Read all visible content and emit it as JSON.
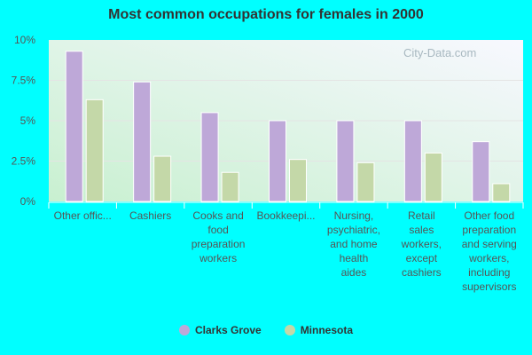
{
  "chart_data": {
    "type": "bar",
    "title": "Most common occupations for females in 2000",
    "categories": [
      "Other offic...",
      "Cashiers",
      "Cooks and food preparation workers",
      "Bookkeepi...",
      "Nursing, psychiatric, and home health aides",
      "Retail sales workers, except cashiers",
      "Other food preparation and serving workers, including supervisors"
    ],
    "category_lines": [
      [
        "Other offic..."
      ],
      [
        "Cashiers"
      ],
      [
        "Cooks and",
        "food",
        "preparation",
        "workers"
      ],
      [
        "Bookkeepi..."
      ],
      [
        "Nursing,",
        "psychiatric,",
        "and home",
        "health",
        "aides"
      ],
      [
        "Retail",
        "sales",
        "workers,",
        "except",
        "cashiers"
      ],
      [
        "Other food",
        "preparation",
        "and serving",
        "workers,",
        "including",
        "supervisors"
      ]
    ],
    "series": [
      {
        "name": "Clarks Grove",
        "color": "#bea8d8",
        "values": [
          9.3,
          7.4,
          5.5,
          5.0,
          5.0,
          5.0,
          3.7
        ]
      },
      {
        "name": "Minnesota",
        "color": "#c4d8a8",
        "values": [
          6.3,
          2.8,
          1.8,
          2.6,
          2.4,
          3.0,
          1.1
        ]
      }
    ],
    "ylim": [
      0,
      10
    ],
    "yticks": [
      "0%",
      "2.5%",
      "5%",
      "7.5%",
      "10%"
    ],
    "ytick_values": [
      0,
      2.5,
      5,
      7.5,
      10
    ],
    "grid": true,
    "legend": "bottom"
  },
  "watermark": "City-Data.com"
}
